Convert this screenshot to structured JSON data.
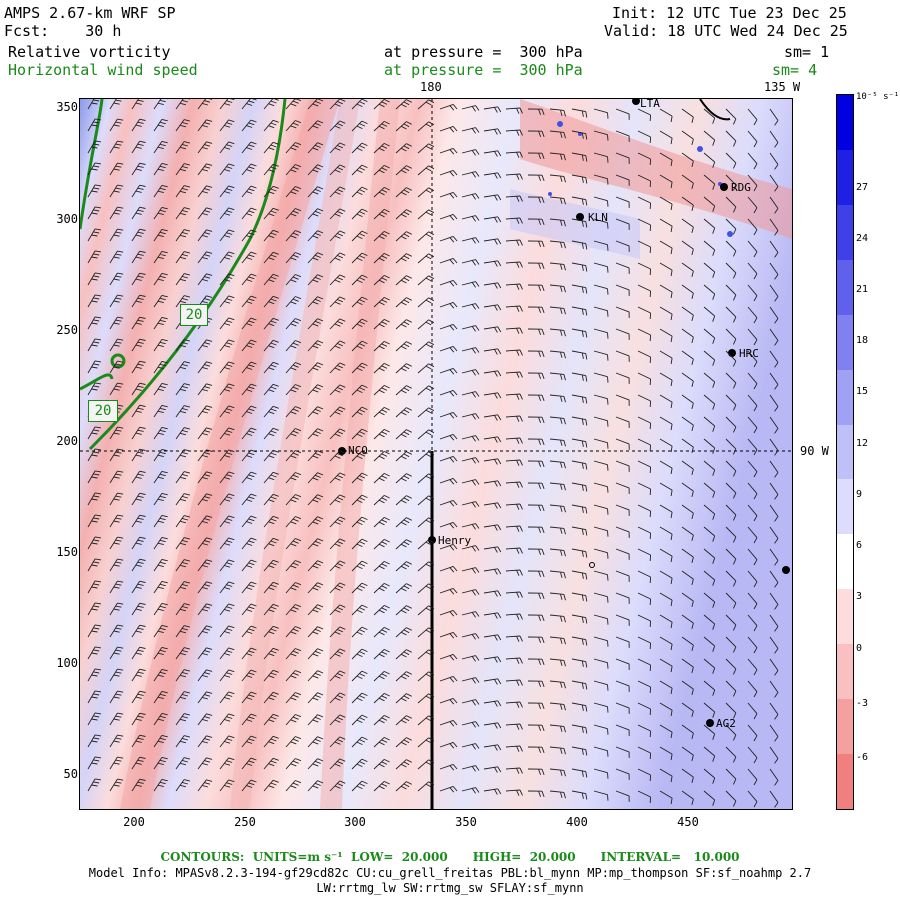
{
  "header": {
    "title": "AMPS 2.67-km WRF SP",
    "forecast": "Fcst:    30 h",
    "init": "Init: 12 UTC Tue 23 Dec 25",
    "valid": "Valid: 18 UTC Wed 24 Dec 25",
    "field1_name": "Relative vorticity",
    "field1_level": "at pressure =  300 hPa",
    "field1_sm": "sm= 1",
    "field2_name": "Horizontal wind speed",
    "field2_level": "at pressure =  300 hPa",
    "field2_sm": "sm= 4"
  },
  "map": {
    "top_labels": [
      "180",
      "135 W"
    ],
    "right_label": "90 W",
    "contour_labels": [
      "20",
      "20"
    ],
    "stations": [
      "NCO",
      "Henry",
      "KLN",
      "RDG",
      "HRC",
      "AG2",
      "LTA"
    ],
    "x_ticks": [
      "200",
      "250",
      "300",
      "350",
      "400",
      "450"
    ],
    "y_ticks": [
      "350",
      "300",
      "250",
      "200",
      "150",
      "100",
      "50"
    ]
  },
  "colorbar": {
    "unit": "10⁻⁵ s⁻¹",
    "ticks": [
      "27",
      "24",
      "21",
      "18",
      "15",
      "12",
      "9",
      "6",
      "3",
      "0",
      "-3",
      "-6"
    ],
    "colors": [
      "#f08080",
      "#f4a0a0",
      "#f8c0c0",
      "#fcdcdc",
      "#ffffff",
      "#dcdcfc",
      "#c0c0f8",
      "#a0a0f4",
      "#8080f0",
      "#6060ec",
      "#4040e8",
      "#2020e4",
      "#0000e0"
    ]
  },
  "footer": {
    "contours": "CONTOURS:  UNITS=m s⁻¹  LOW=  20.000      HIGH=  20.000      INTERVAL=   10.000",
    "model_info": "Model Info: MPASv8.2.3-194-gf29cd82c CU:cu_grell_freitas PBL:bl_mynn MP:mp_thompson SF:sf_noahmp 2.7",
    "model_info2": "LW:rrtmg_lw SW:rrtmg_sw SFLAY:sf_mynn"
  }
}
